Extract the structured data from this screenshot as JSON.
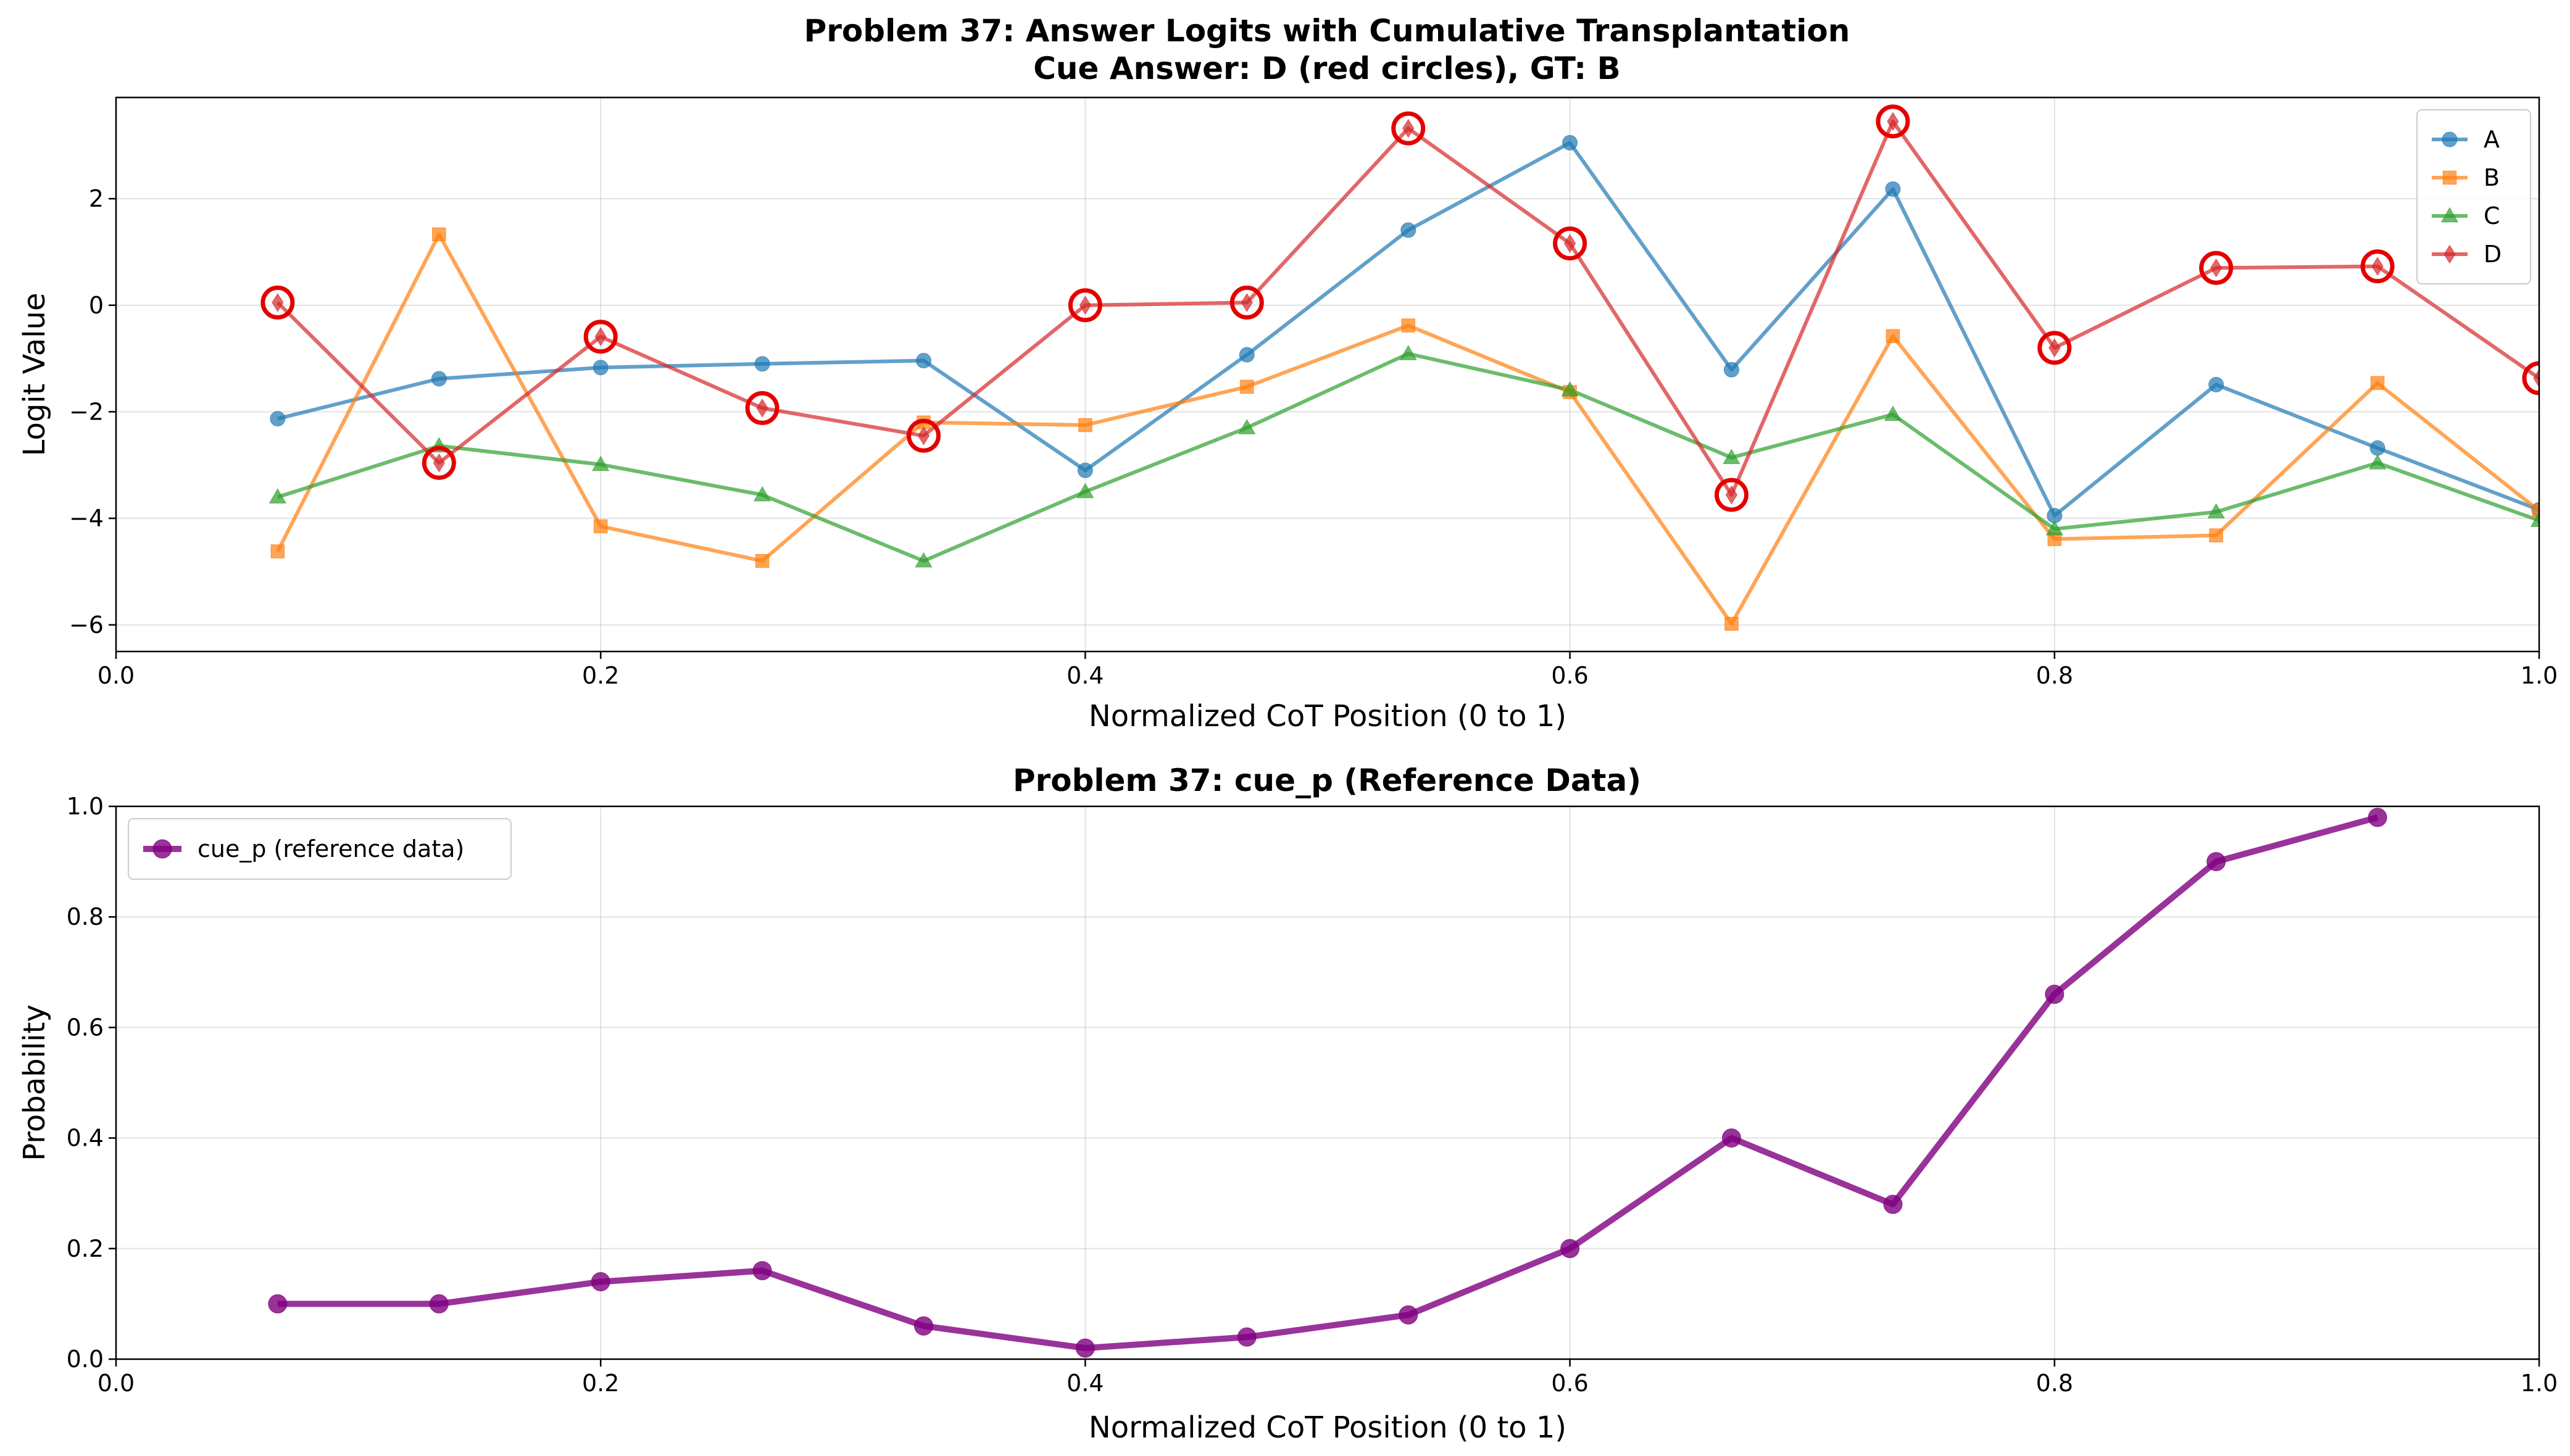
{
  "chart_data": [
    {
      "type": "line",
      "title": "Problem 37: Answer Logits with Cumulative Transplantation",
      "subtitle": "Cue Answer: D (red circles), GT: B",
      "xlabel": "Normalized CoT Position (0 to 1)",
      "ylabel": "Logit Value",
      "xlim": [
        0,
        1
      ],
      "ylim": [
        -6.5,
        3.9
      ],
      "xticks": [
        0.0,
        0.2,
        0.4,
        0.6,
        0.8,
        1.0
      ],
      "xtick_labels": [
        "0.0",
        "0.2",
        "0.4",
        "0.6",
        "0.8",
        "1.0"
      ],
      "yticks": [
        -6,
        -4,
        -2,
        0,
        2
      ],
      "ytick_labels": [
        "−6",
        "−4",
        "−2",
        "0",
        "2"
      ],
      "grid": true,
      "legend_position": "top-right",
      "x": [
        0.0667,
        0.1333,
        0.2,
        0.2667,
        0.3333,
        0.4,
        0.4667,
        0.5333,
        0.6,
        0.6667,
        0.7333,
        0.8,
        0.8667,
        0.9333,
        1.0
      ],
      "series": [
        {
          "name": "A",
          "color": "#1f77b4",
          "marker": "circle",
          "values": [
            -2.13,
            -1.38,
            -1.17,
            -1.1,
            -1.04,
            -3.1,
            -0.93,
            1.41,
            3.05,
            -1.21,
            2.18,
            -3.95,
            -1.49,
            -2.68,
            -3.84
          ]
        },
        {
          "name": "B",
          "color": "#ff7f0e",
          "marker": "square",
          "values": [
            -4.62,
            1.33,
            -4.15,
            -4.8,
            -2.2,
            -2.25,
            -1.53,
            -0.38,
            -1.63,
            -5.98,
            -0.58,
            -4.39,
            -4.32,
            -1.46,
            -3.86
          ]
        },
        {
          "name": "C",
          "color": "#2ca02c",
          "marker": "triangle",
          "values": [
            -3.6,
            -2.64,
            -2.99,
            -3.56,
            -4.8,
            -3.5,
            -2.3,
            -0.91,
            -1.59,
            -2.86,
            -2.05,
            -4.2,
            -3.88,
            -2.96,
            -4.04
          ]
        },
        {
          "name": "D",
          "color": "#d62728",
          "marker": "diamond",
          "values": [
            0.05,
            -2.96,
            -0.59,
            -1.93,
            -2.45,
            0.0,
            0.05,
            3.32,
            1.16,
            -3.56,
            3.45,
            -0.8,
            0.7,
            0.73,
            -1.37
          ]
        }
      ],
      "cue_highlight": {
        "series": "D",
        "color": "#e50000"
      }
    },
    {
      "type": "line",
      "title": "Problem 37: cue_p (Reference Data)",
      "xlabel": "Normalized CoT Position (0 to 1)",
      "ylabel": "Probability",
      "xlim": [
        0,
        1
      ],
      "ylim": [
        0,
        1
      ],
      "xticks": [
        0.0,
        0.2,
        0.4,
        0.6,
        0.8,
        1.0
      ],
      "xtick_labels": [
        "0.0",
        "0.2",
        "0.4",
        "0.6",
        "0.8",
        "1.0"
      ],
      "yticks": [
        0.0,
        0.2,
        0.4,
        0.6,
        0.8,
        1.0
      ],
      "ytick_labels": [
        "0.0",
        "0.2",
        "0.4",
        "0.6",
        "0.8",
        "1.0"
      ],
      "grid": true,
      "legend_position": "top-left",
      "x": [
        0.0667,
        0.1333,
        0.2,
        0.2667,
        0.3333,
        0.4,
        0.4667,
        0.5333,
        0.6,
        0.6667,
        0.7333,
        0.8,
        0.8667,
        0.9333
      ],
      "series": [
        {
          "name": "cue_p (reference data)",
          "color": "#800080",
          "marker": "circle",
          "values": [
            0.1,
            0.1,
            0.14,
            0.16,
            0.06,
            0.02,
            0.04,
            0.08,
            0.2,
            0.4,
            0.28,
            0.66,
            0.9,
            0.98
          ]
        }
      ]
    }
  ]
}
